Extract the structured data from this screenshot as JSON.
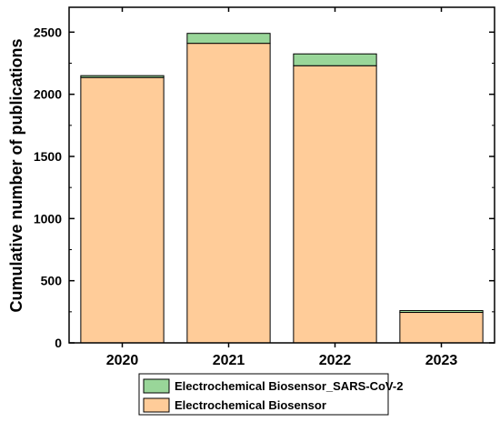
{
  "chart_data": {
    "type": "bar",
    "stacked": true,
    "categories": [
      "2020",
      "2021",
      "2022",
      "2023"
    ],
    "series": [
      {
        "name": "Electrochemical Biosensor",
        "color": "#FFCC99",
        "values": [
          2135,
          2410,
          2230,
          245
        ]
      },
      {
        "name": "Electrochemical Biosensor_SARS-CoV-2",
        "color": "#99D699",
        "values": [
          15,
          80,
          95,
          15
        ]
      }
    ],
    "title": "",
    "xlabel": "",
    "ylabel": "Cumulative number of publications",
    "ylim": [
      0,
      2700
    ],
    "yticks": [
      0,
      500,
      1000,
      1500,
      2000,
      2500
    ],
    "legend": {
      "placement": "bottom",
      "entries": [
        "Electrochemical Biosensor_SARS-CoV-2",
        "Electrochemical Biosensor"
      ]
    }
  }
}
